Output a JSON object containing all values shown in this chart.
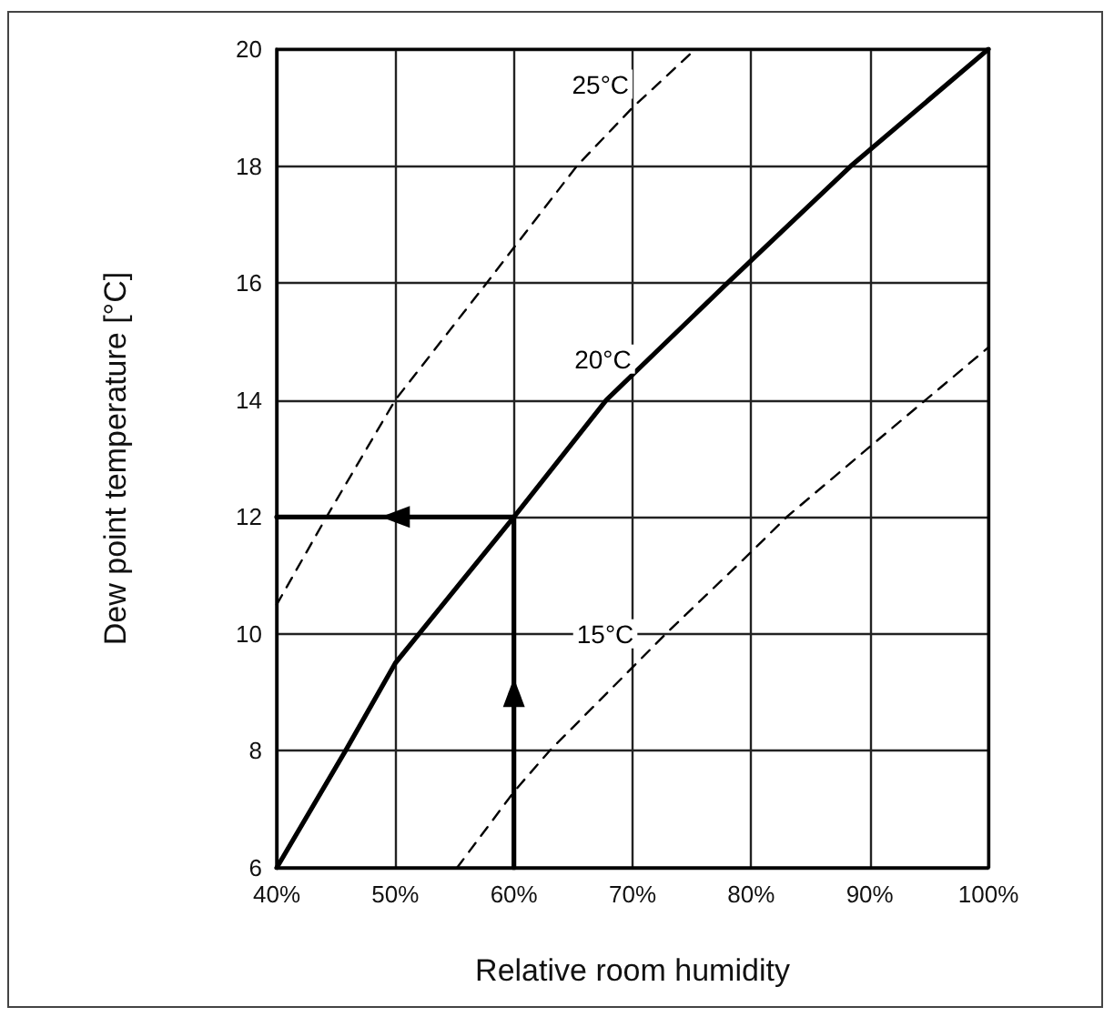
{
  "chart_data": {
    "type": "line",
    "xlabel": "Relative room humidity",
    "ylabel": "Dew point temperature [°C]",
    "xlim": [
      40,
      100
    ],
    "xticks": [
      {
        "value": 40,
        "label": "40%"
      },
      {
        "value": 50,
        "label": "50%"
      },
      {
        "value": 60,
        "label": "60%"
      },
      {
        "value": 70,
        "label": "70%"
      },
      {
        "value": 80,
        "label": "80%"
      },
      {
        "value": 90,
        "label": "90%"
      },
      {
        "value": 100,
        "label": "100%"
      }
    ],
    "ylim": [
      6,
      20
    ],
    "yticks": [
      6,
      8,
      10,
      12,
      14,
      16,
      18,
      20
    ],
    "grid": true,
    "series": [
      {
        "color": "#000000",
        "line_style": "dashed",
        "x": [
          40,
          44.2,
          50,
          57.7,
          65.3,
          70,
          75.3
        ],
        "values": [
          10.5,
          12,
          14,
          16,
          18,
          19,
          20
        ]
      },
      {
        "color": "#000000",
        "line_style": "solid",
        "x": [
          40,
          45.8,
          50,
          52,
          60,
          67.8,
          78,
          88.4,
          100
        ],
        "values": [
          6,
          8,
          9.5,
          10,
          12,
          14,
          16,
          18,
          20
        ]
      },
      {
        "color": "#000000",
        "line_style": "dashed",
        "x": [
          55.2,
          60,
          63,
          72.8,
          80,
          83,
          90,
          100
        ],
        "values": [
          6,
          7.3,
          8,
          10,
          11.4,
          12,
          13.2,
          14.9
        ]
      },
      {
        "color": "#000000",
        "line_style": "solid",
        "x": [
          60,
          60,
          40
        ],
        "values": [
          6,
          12,
          12
        ]
      }
    ],
    "annotations": [
      {
        "text": "25°C",
        "x": 67.3,
        "y": 19.4
      },
      {
        "text": "20°C",
        "x": 67.5,
        "y": 14.7
      },
      {
        "text": "15°C",
        "x": 67.7,
        "y": 10
      }
    ]
  }
}
